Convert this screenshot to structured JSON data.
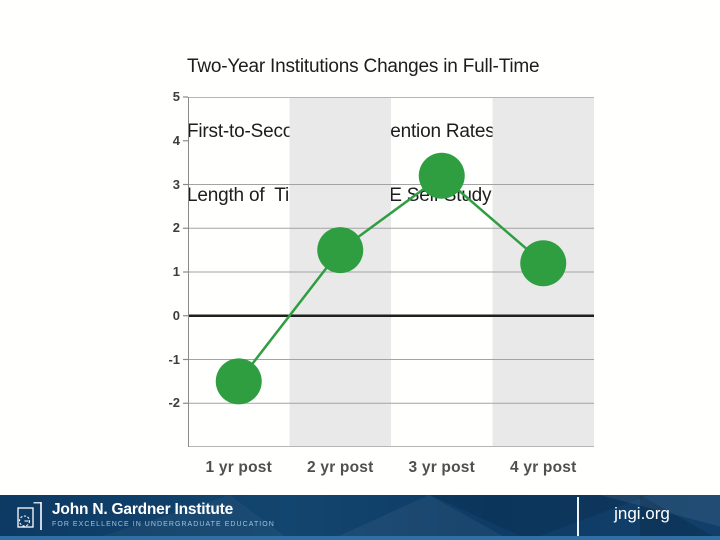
{
  "slide": {
    "title_lines": [
      "Two-Year Institutions Changes in Full-Time",
      "First-to-Second Year Retention Rates by",
      "Length of  Time Post  FoE Self Study"
    ]
  },
  "chart_data": {
    "type": "line",
    "title": "Two-Year Institutions Changes in Full-Time First-to-Second Year Retention Rates by Length of Time Post FoE Self Study",
    "categories": [
      "1 yr post",
      "2 yr post",
      "3 yr post",
      "4 yr post"
    ],
    "values": [
      -1.5,
      1.5,
      3.2,
      1.2
    ],
    "xlabel": "",
    "ylabel": "",
    "ylim": [
      -3,
      5
    ],
    "yticks": [
      5,
      4,
      3,
      2,
      1,
      0,
      -1,
      -2
    ],
    "gridline_values": [
      3,
      2,
      1,
      -1,
      -2
    ],
    "zero_line": true,
    "shaded_columns": [
      1,
      3
    ],
    "marker": "circle",
    "legend": "none",
    "colors": {
      "marker": "#2f9e41",
      "line": "#2f9e41",
      "band": "#e9e9e9",
      "grid": "#a3a3a3",
      "zero_line": "#1f1f1f",
      "axis": "#8a8a8a",
      "border": "#b5b5b5",
      "tick_label": "#3d3d3d",
      "category_label": "#4f4f4f"
    }
  },
  "footer": {
    "org_name": "John N. Gardner Institute",
    "org_tagline": "FOR  EXCELLENCE  IN  UNDERGRADUATE  EDUCATION",
    "website": "jngi.org",
    "colors": {
      "background": "#11416e",
      "accent_strip": "#2e6fa4",
      "tagline": "#9dc2e2"
    }
  }
}
